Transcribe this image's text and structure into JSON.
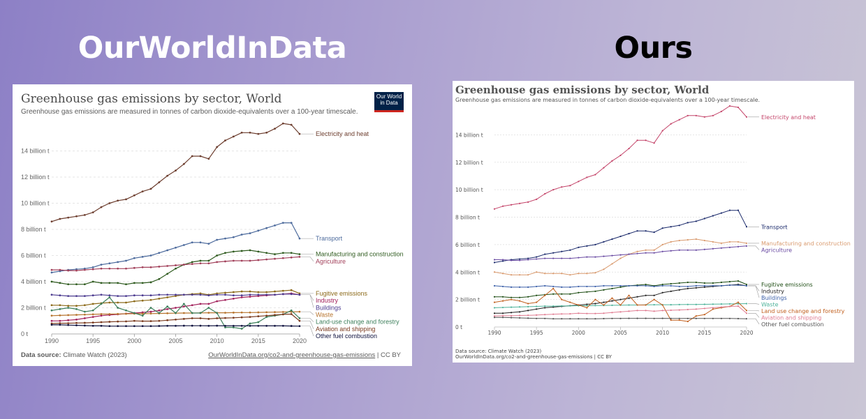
{
  "headings": {
    "left": "OurWorldInData",
    "right": "Ours"
  },
  "panels": {
    "left": {
      "title": "Greenhouse gas emissions by sector, World",
      "subtitle": "Greenhouse gas emissions are measured in tonnes of carbon dioxide-equivalents over a 100-year timescale.",
      "logo_line1": "Our World",
      "logo_line2": "in Data",
      "source_label": "Data source:",
      "source_value": " Climate Watch (2023)",
      "url": "OurWorldInData.org/co2-and-greenhouse-gas-emissions",
      "license": " | CC BY"
    },
    "right": {
      "title": "Greenhouse gas emissions by sector, World",
      "subtitle": "Greenhouse gas emissions are measured in tonnes of carbon dioxide-equivalents over a 100-year timescale.",
      "source": "Data source: Climate Watch (2023)",
      "url": "OurWorldInData.org/co2-and-greenhouse-gas-emissions | CC BY"
    }
  },
  "chart_data": {
    "type": "line",
    "title": "Greenhouse gas emissions by sector, World",
    "subtitle": "Greenhouse gas emissions are measured in tonnes of carbon dioxide-equivalents over a 100-year timescale.",
    "x": [
      1990,
      1991,
      1992,
      1993,
      1994,
      1995,
      1996,
      1997,
      1998,
      1999,
      2000,
      2001,
      2002,
      2003,
      2004,
      2005,
      2006,
      2007,
      2008,
      2009,
      2010,
      2011,
      2012,
      2013,
      2014,
      2015,
      2016,
      2017,
      2018,
      2019,
      2020
    ],
    "xlim": [
      1990,
      2020
    ],
    "ylim": [
      0,
      16
    ],
    "y_ticks": [
      0,
      2,
      4,
      6,
      8,
      10,
      12,
      14
    ],
    "y_tick_labels": [
      "0 t",
      "2 billion t",
      "4 billion t",
      "6 billion t",
      "8 billion t",
      "10 billion t",
      "12 billion t",
      "14 billion t"
    ],
    "x_ticks": [
      1990,
      1995,
      2000,
      2005,
      2010,
      2015,
      2020
    ],
    "x_tick_labels": [
      "1990",
      "1995",
      "2000",
      "2005",
      "2010",
      "2015",
      "2020"
    ],
    "grid": true,
    "legend": "labels at right end of lines",
    "series": [
      {
        "name": "Electricity and heat",
        "color_owid": "#6d3e2f",
        "color_ours": "#c4456a",
        "values": [
          8.6,
          8.8,
          8.9,
          9.0,
          9.1,
          9.3,
          9.7,
          10.0,
          10.2,
          10.3,
          10.6,
          10.9,
          11.1,
          11.6,
          12.1,
          12.5,
          13.0,
          13.6,
          13.6,
          13.4,
          14.3,
          14.8,
          15.1,
          15.4,
          15.4,
          15.3,
          15.4,
          15.7,
          16.1,
          16.0,
          15.3
        ]
      },
      {
        "name": "Transport",
        "color_owid": "#4c6a9c",
        "color_ours": "#1b2a6b",
        "values": [
          4.7,
          4.8,
          4.9,
          4.95,
          5.0,
          5.1,
          5.3,
          5.4,
          5.5,
          5.6,
          5.8,
          5.9,
          6.0,
          6.2,
          6.4,
          6.6,
          6.8,
          7.0,
          7.0,
          6.9,
          7.2,
          7.3,
          7.4,
          7.6,
          7.7,
          7.9,
          8.1,
          8.3,
          8.5,
          8.5,
          7.3
        ]
      },
      {
        "name": "Manufacturing and construction",
        "color_owid": "#2f5b1f",
        "color_ours": "#d99a6e",
        "values": [
          4.0,
          3.9,
          3.8,
          3.8,
          3.8,
          4.0,
          3.9,
          3.9,
          3.9,
          3.8,
          3.9,
          3.9,
          3.95,
          4.2,
          4.6,
          5.0,
          5.3,
          5.5,
          5.6,
          5.6,
          6.0,
          6.2,
          6.3,
          6.35,
          6.4,
          6.3,
          6.2,
          6.1,
          6.2,
          6.2,
          6.1
        ]
      },
      {
        "name": "Agriculture",
        "color_owid": "#a2415b",
        "color_ours": "#6b4ca3",
        "values": [
          4.9,
          4.9,
          4.85,
          4.85,
          4.9,
          4.95,
          5.0,
          5.0,
          5.0,
          5.0,
          5.05,
          5.1,
          5.1,
          5.15,
          5.2,
          5.25,
          5.3,
          5.35,
          5.4,
          5.4,
          5.5,
          5.55,
          5.6,
          5.6,
          5.6,
          5.65,
          5.7,
          5.75,
          5.8,
          5.85,
          5.9
        ]
      },
      {
        "name": "Fugitive emissions",
        "color_owid": "#8c6a1a",
        "color_ours": "#1e4d14",
        "values": [
          2.2,
          2.2,
          2.15,
          2.15,
          2.2,
          2.3,
          2.35,
          2.4,
          2.4,
          2.4,
          2.5,
          2.55,
          2.6,
          2.7,
          2.8,
          2.9,
          3.0,
          3.05,
          3.1,
          3.0,
          3.1,
          3.15,
          3.2,
          3.25,
          3.25,
          3.2,
          3.2,
          3.25,
          3.3,
          3.35,
          3.1
        ]
      },
      {
        "name": "Industry",
        "color_owid": "#a2215b",
        "color_ours": "#222222",
        "values": [
          1.0,
          1.0,
          1.05,
          1.1,
          1.2,
          1.3,
          1.4,
          1.45,
          1.5,
          1.55,
          1.6,
          1.65,
          1.7,
          1.8,
          1.9,
          2.0,
          2.1,
          2.2,
          2.3,
          2.3,
          2.5,
          2.6,
          2.7,
          2.8,
          2.85,
          2.9,
          2.95,
          3.0,
          3.05,
          3.1,
          3.0
        ]
      },
      {
        "name": "Buildings",
        "color_owid": "#4b3a8f",
        "color_ours": "#3b5fa8",
        "values": [
          3.0,
          2.95,
          2.9,
          2.9,
          2.9,
          2.95,
          3.0,
          2.95,
          2.9,
          2.9,
          2.95,
          2.95,
          2.95,
          3.0,
          3.0,
          3.0,
          3.0,
          3.0,
          3.0,
          2.95,
          3.0,
          3.0,
          2.95,
          2.95,
          3.0,
          3.0,
          3.0,
          3.0,
          3.05,
          3.05,
          3.0
        ]
      },
      {
        "name": "Waste",
        "color_owid": "#b7752f",
        "color_ours": "#4fb39a",
        "values": [
          1.4,
          1.42,
          1.44,
          1.46,
          1.48,
          1.5,
          1.52,
          1.52,
          1.53,
          1.54,
          1.55,
          1.55,
          1.56,
          1.57,
          1.58,
          1.59,
          1.6,
          1.6,
          1.61,
          1.62,
          1.62,
          1.62,
          1.63,
          1.64,
          1.64,
          1.65,
          1.66,
          1.67,
          1.68,
          1.69,
          1.7
        ]
      },
      {
        "name": "Land-use change and forestry",
        "color_owid": "#3d7f5b",
        "color_ours": "#c1601f",
        "values": [
          1.8,
          1.9,
          2.0,
          1.9,
          1.7,
          1.8,
          2.3,
          2.8,
          2.0,
          1.8,
          1.6,
          1.4,
          2.0,
          1.6,
          2.1,
          1.6,
          2.3,
          1.6,
          1.6,
          2.0,
          1.6,
          0.5,
          0.5,
          0.4,
          0.8,
          0.9,
          1.3,
          1.4,
          1.5,
          1.8,
          1.2
        ]
      },
      {
        "name": "Aviation and shipping",
        "color_owid": "#7a3b1f",
        "color_ours": "#e07d92",
        "values": [
          0.8,
          0.82,
          0.82,
          0.84,
          0.85,
          0.87,
          0.9,
          0.93,
          0.95,
          0.96,
          1.0,
          0.98,
          0.98,
          1.0,
          1.05,
          1.1,
          1.15,
          1.2,
          1.2,
          1.15,
          1.2,
          1.22,
          1.24,
          1.27,
          1.3,
          1.35,
          1.4,
          1.45,
          1.5,
          1.52,
          1.0
        ]
      },
      {
        "name": "Other fuel combustion",
        "color_owid": "#10133f",
        "color_ours": "#555555",
        "values": [
          0.7,
          0.7,
          0.68,
          0.66,
          0.64,
          0.62,
          0.62,
          0.6,
          0.6,
          0.6,
          0.6,
          0.6,
          0.6,
          0.61,
          0.62,
          0.62,
          0.63,
          0.63,
          0.63,
          0.62,
          0.63,
          0.62,
          0.62,
          0.62,
          0.62,
          0.62,
          0.62,
          0.62,
          0.62,
          0.61,
          0.6
        ]
      }
    ],
    "end_labels_owid": [
      "Electricity and heat",
      "Transport",
      "Manufacturing and construction",
      "Agriculture",
      "Fugitive emissions",
      "Industry",
      "Buildings",
      "Waste",
      "Land-use change and forestry",
      "Aviation and shipping",
      "Other fuel combustion"
    ],
    "end_labels_ours": [
      "Electricity and heat",
      "Transport",
      "Manufacturing and construction",
      "Agriculture",
      "Fugitive emissions",
      "Industry",
      "Buildings",
      "Waste",
      "Land use change and forestry",
      "Aviation and shipping",
      "Other fuel combustion"
    ]
  }
}
